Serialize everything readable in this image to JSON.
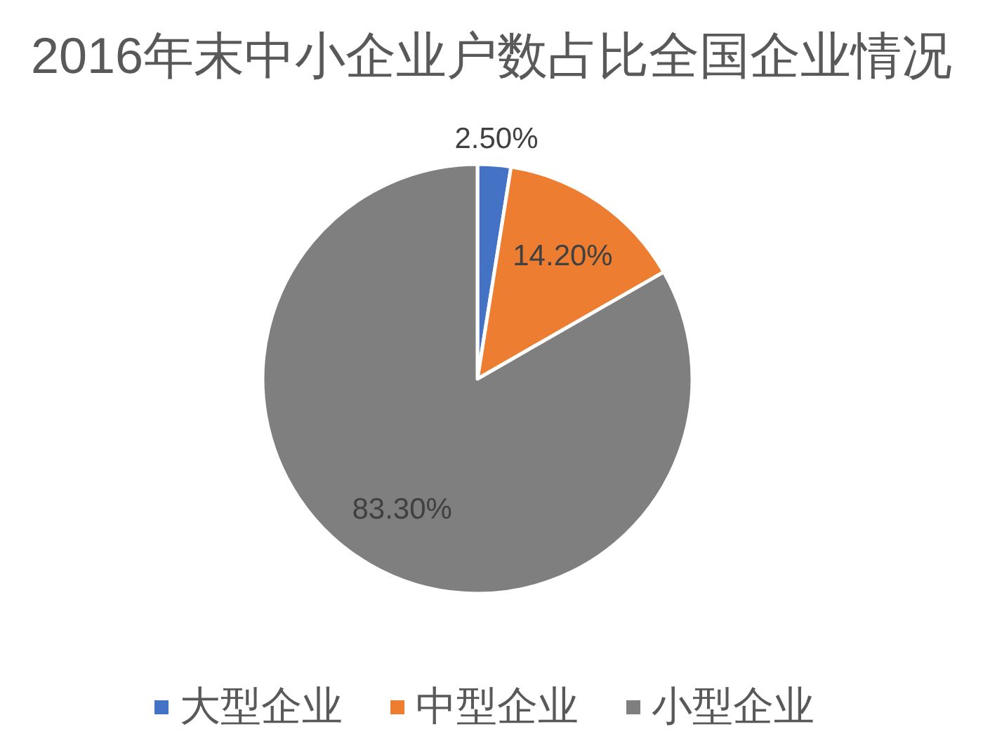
{
  "chart_data": {
    "type": "pie",
    "title": "2016年末中小企业户数占比全国企业情况",
    "categories": [
      "大型企业",
      "中型企业",
      "小型企业"
    ],
    "values": [
      2.5,
      14.2,
      83.3
    ],
    "colors": [
      "#4472c4",
      "#ed7d31",
      "#7f7f7f"
    ],
    "value_labels": [
      "2.50%",
      "14.20%",
      "83.30%"
    ],
    "legend": "bottom"
  }
}
